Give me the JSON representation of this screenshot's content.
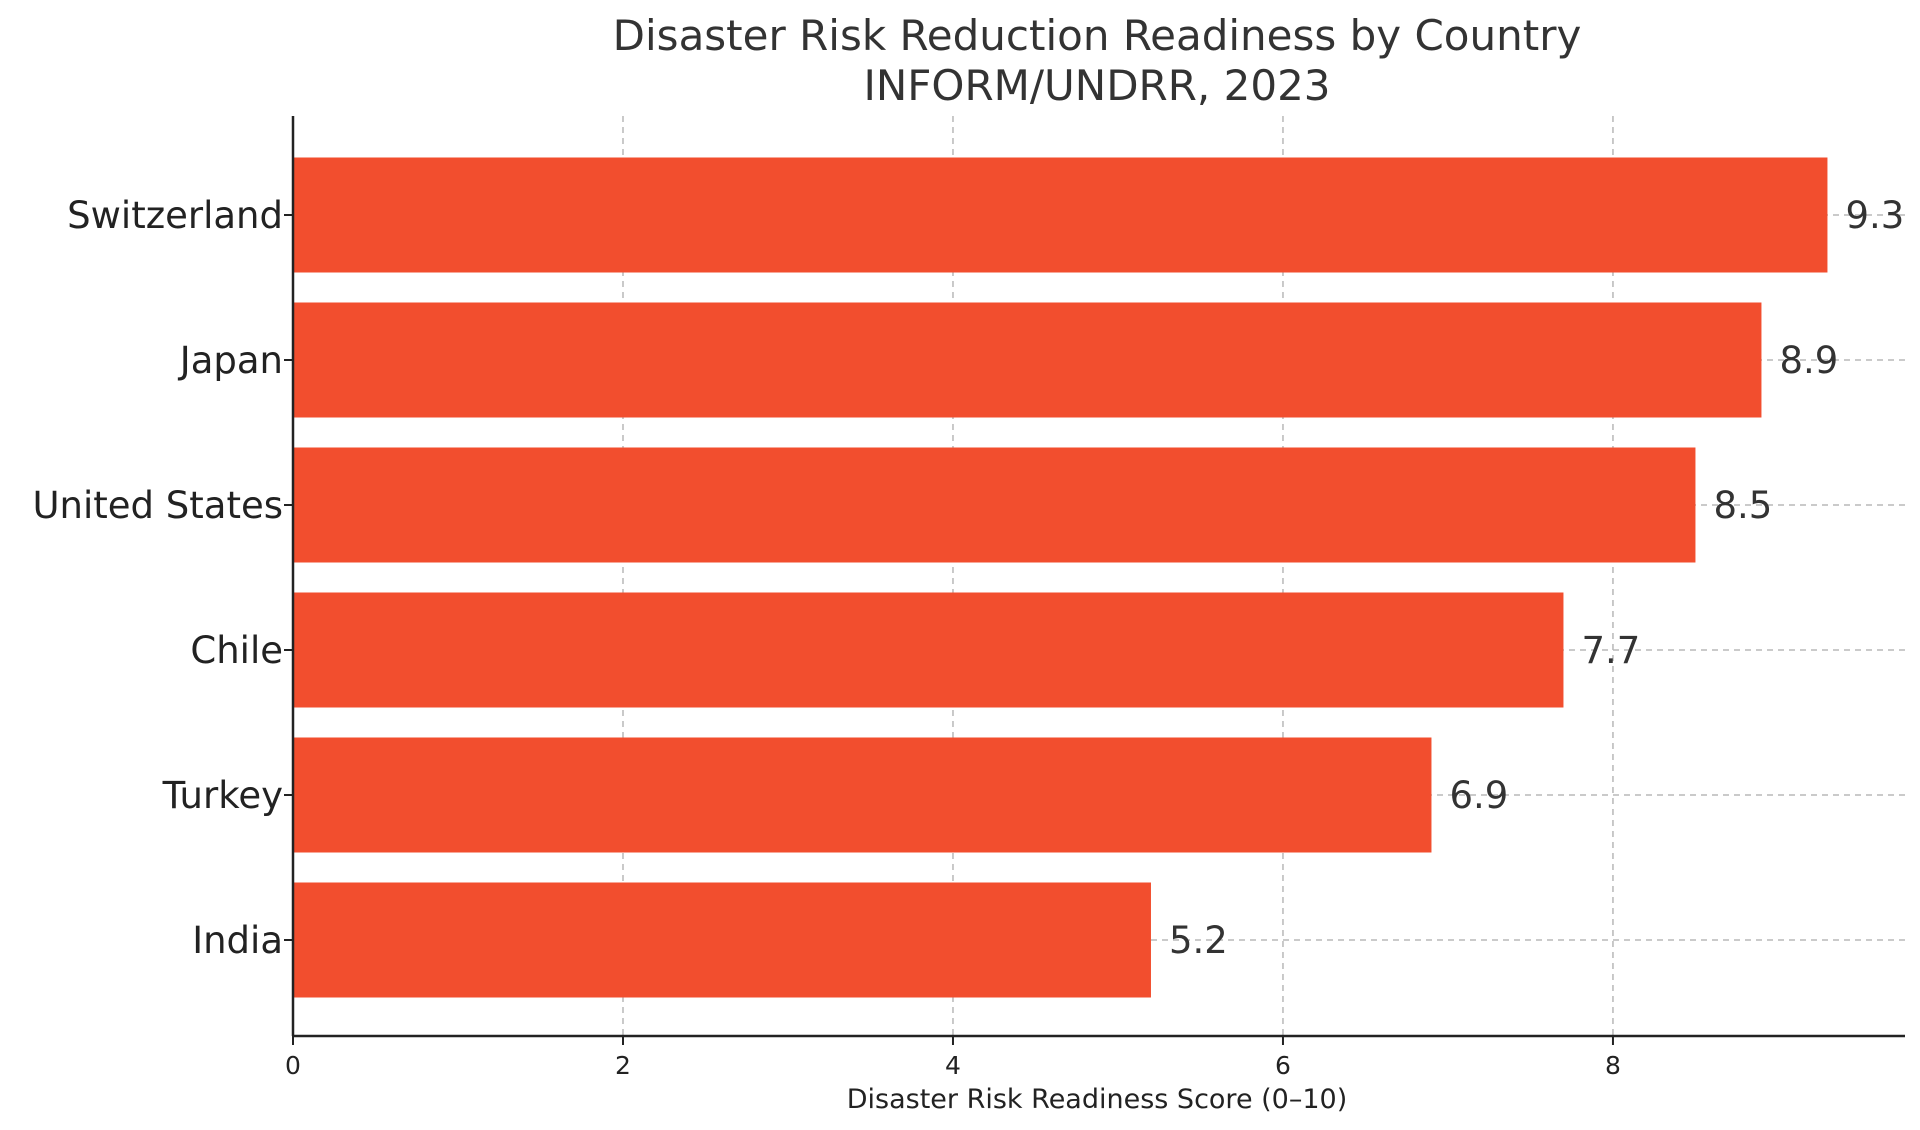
{
  "chart_data": {
    "type": "bar",
    "orientation": "horizontal",
    "title": "Disaster Risk Reduction Readiness by Country",
    "subtitle": "INFORM/UNDRR, 2023",
    "xlabel": "Disaster Risk Readiness Score (0–10)",
    "ylabel": "",
    "xlim": [
      0,
      9.77
    ],
    "x_ticks": [
      "0",
      "2",
      "4",
      "6",
      "8"
    ],
    "categories": [
      "Switzerland",
      "Japan",
      "United States",
      "Chile",
      "Turkey",
      "India"
    ],
    "values": [
      9.3,
      8.9,
      8.5,
      7.7,
      6.9,
      5.2
    ],
    "value_labels": [
      "9.3",
      "8.9",
      "8.5",
      "7.7",
      "6.9",
      "5.2"
    ],
    "grid": true,
    "legend": "none",
    "bar_color": "#f24e2e"
  }
}
